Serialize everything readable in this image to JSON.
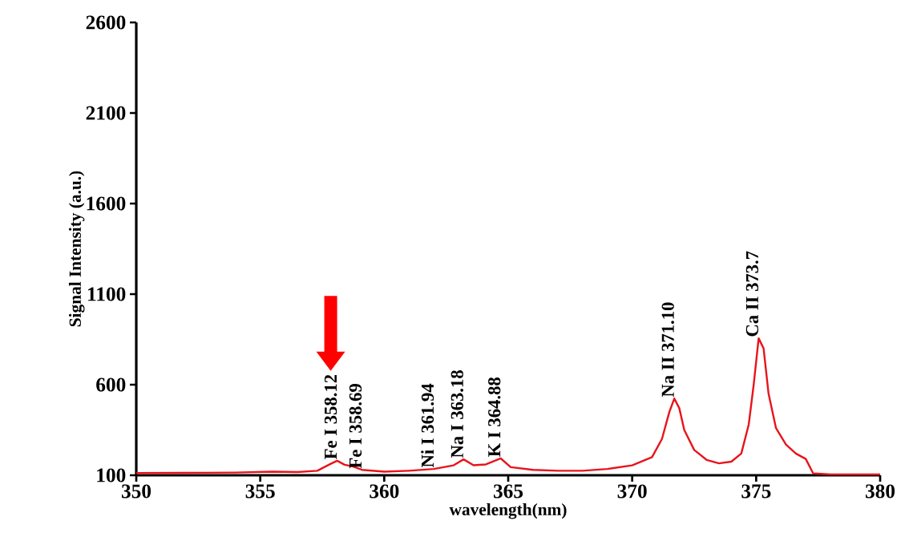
{
  "chart_data": {
    "type": "line",
    "xlabel": "wavelength(nm)",
    "ylabel": "Signal Intensity (a.u.)",
    "xlim": [
      350,
      380
    ],
    "xticks": [
      350,
      355,
      360,
      365,
      370,
      375,
      380
    ],
    "ylim": [
      100,
      2600
    ],
    "yticks": [
      100,
      600,
      1100,
      1600,
      2100,
      2600
    ],
    "grid": false,
    "marker": "none",
    "line_style": "solid",
    "series": [
      {
        "color": "#e8141c",
        "x": [
          350,
          352,
          354,
          355.5,
          356.5,
          357.3,
          357.8,
          358.1,
          358.4,
          358.7,
          359.1,
          360,
          361,
          362,
          362.8,
          363.2,
          363.6,
          364.1,
          364.7,
          365.1,
          366,
          367,
          368,
          369,
          370,
          370.8,
          371.2,
          371.5,
          371.7,
          371.9,
          372.1,
          372.5,
          373,
          373.5,
          374,
          374.4,
          374.7,
          374.9,
          375.1,
          375.3,
          375.5,
          375.8,
          376.2,
          376.6,
          377,
          377.3,
          378,
          380
        ],
        "values": [
          112,
          113,
          115,
          120,
          118,
          125,
          160,
          180,
          158,
          150,
          130,
          120,
          125,
          135,
          155,
          188,
          155,
          160,
          193,
          145,
          130,
          125,
          125,
          135,
          155,
          200,
          300,
          450,
          524,
          470,
          350,
          240,
          185,
          166,
          175,
          220,
          380,
          600,
          856,
          800,
          550,
          360,
          270,
          220,
          190,
          110,
          105,
          105
        ]
      }
    ],
    "annotations": [
      {
        "text": "Fe I  358.12",
        "x": 358.1,
        "y": 180
      },
      {
        "text": "Fe I  358.69",
        "x": 359.1,
        "y": 130
      },
      {
        "text": "Ni I  361.94",
        "x": 362,
        "y": 135
      },
      {
        "text": "Na I  363.18",
        "x": 363.2,
        "y": 188
      },
      {
        "text": "K I 364.88",
        "x": 364.7,
        "y": 193
      },
      {
        "text": "Na II 371.10",
        "x": 371.7,
        "y": 524
      },
      {
        "text": "Ca II 373.7",
        "x": 375.1,
        "y": 856
      }
    ]
  }
}
